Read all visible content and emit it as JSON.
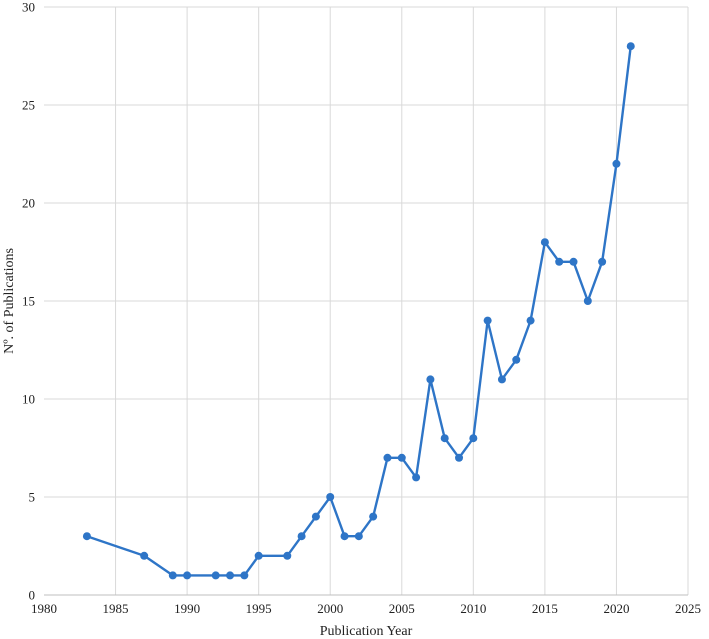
{
  "chart_data": {
    "type": "line",
    "title": "",
    "xlabel": "Publication Year",
    "ylabel": "Nº. of Publications",
    "xlim": [
      1980,
      2025
    ],
    "ylim": [
      0,
      30
    ],
    "xticks": [
      1980,
      1985,
      1990,
      1995,
      2000,
      2005,
      2010,
      2015,
      2020,
      2025
    ],
    "yticks": [
      0,
      5,
      10,
      15,
      20,
      25,
      30
    ],
    "grid": true,
    "legend": "none",
    "series": [
      {
        "color": "#2e75c7",
        "x": [
          1983,
          1987,
          1989,
          1990,
          1992,
          1993,
          1994,
          1995,
          1997,
          1998,
          1999,
          2000,
          2001,
          2002,
          2003,
          2004,
          2005,
          2006,
          2007,
          2008,
          2009,
          2010,
          2011,
          2012,
          2013,
          2014,
          2015,
          2016,
          2017,
          2018,
          2019,
          2020,
          2021
        ],
        "y": [
          3,
          2,
          1,
          1,
          1,
          1,
          1,
          2,
          2,
          3,
          4,
          5,
          3,
          3,
          4,
          7,
          7,
          6,
          11,
          8,
          7,
          8,
          14,
          11,
          12,
          14,
          18,
          17,
          17,
          15,
          17,
          22,
          28
        ]
      }
    ]
  }
}
